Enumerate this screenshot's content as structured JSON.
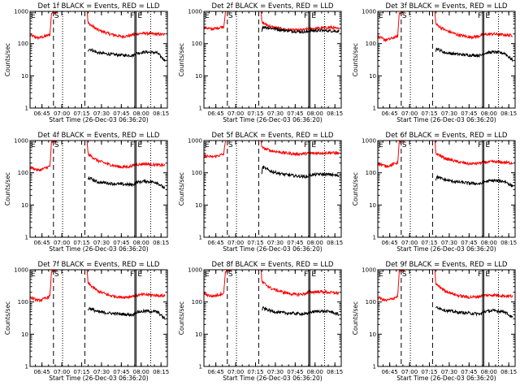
{
  "figure": {
    "title_template": "Det {n}f BLACK = Events, RED = LLD",
    "x_label": "Start Time (26-Dec-03 06:36:20)",
    "y_label": "Counts/sec",
    "x_ticks": [
      "06:45",
      "07:00",
      "07:15",
      "07:30",
      "07:45",
      "08:00",
      "08:15"
    ],
    "y_ticks": [
      "1",
      "10",
      "100",
      "1000"
    ],
    "markers": {
      "start": "E",
      "saa": "S",
      "flare": "F",
      "end": "E"
    },
    "colors": {
      "events": "#000000",
      "lld": "#ff0000",
      "axes": "#000000"
    }
  },
  "chart_data": [
    {
      "type": "line",
      "title": "Det 1f BLACK = Events, RED = LLD",
      "xlabel": "Start Time (26-Dec-03 06:36:20)",
      "ylabel": "Counts/sec",
      "xlim": [
        6.6,
        8.33
      ],
      "ylim": [
        1,
        1000
      ],
      "yscale": "log",
      "vlines": {
        "dashed": [
          6.895,
          7.29
        ],
        "dotted": [
          7.01,
          8.12
        ],
        "solid": [
          7.92,
          7.935
        ]
      },
      "series": [
        {
          "name": "RED = LLD",
          "color": "#ff0000",
          "x": [
            6.6,
            6.7,
            6.76,
            6.85,
            6.87,
            6.95,
            7.32,
            7.33,
            7.45,
            7.6,
            7.75,
            7.85,
            7.93,
            8.05,
            8.2,
            8.3
          ],
          "values": [
            180,
            150,
            160,
            190,
            900,
            1000,
            1000,
            430,
            270,
            200,
            165,
            175,
            200,
            210,
            195,
            190
          ]
        },
        {
          "name": "BLACK = Events",
          "color": "#000000",
          "x": [
            7.33,
            7.34,
            7.45,
            7.6,
            7.75,
            7.9,
            7.93,
            8.05,
            8.2,
            8.3
          ],
          "values": [
            60,
            70,
            52,
            47,
            44,
            43,
            50,
            55,
            52,
            30
          ]
        }
      ]
    },
    {
      "type": "line",
      "title": "Det 2f BLACK = Events, RED = LLD",
      "xlabel": "Start Time (26-Dec-03 06:36:20)",
      "ylabel": "Counts/sec",
      "xlim": [
        6.6,
        8.33
      ],
      "ylim": [
        1,
        1000
      ],
      "yscale": "log",
      "vlines": {
        "dashed": [
          6.895,
          7.29
        ],
        "dotted": [
          7.01,
          8.12
        ],
        "solid": [
          7.92,
          7.935
        ]
      },
      "series": [
        {
          "name": "RED = LLD",
          "color": "#ff0000",
          "x": [
            6.6,
            6.7,
            6.76,
            6.85,
            6.87,
            6.95,
            7.32,
            7.33,
            7.45,
            7.6,
            7.75,
            7.85,
            7.93,
            8.05,
            8.2,
            8.3
          ],
          "values": [
            320,
            280,
            300,
            340,
            1000,
            1000,
            1000,
            450,
            330,
            280,
            260,
            265,
            290,
            300,
            320,
            280
          ]
        },
        {
          "name": "BLACK = Events",
          "color": "#000000",
          "x": [
            7.33,
            7.34,
            7.45,
            7.6,
            7.75,
            7.9,
            7.93,
            8.05,
            8.2,
            8.3
          ],
          "values": [
            260,
            330,
            300,
            260,
            240,
            230,
            250,
            255,
            250,
            240
          ]
        }
      ]
    },
    {
      "type": "line",
      "title": "Det 3f BLACK = Events, RED = LLD",
      "xlabel": "Start Time (26-Dec-03 06:36:20)",
      "ylabel": "Counts/sec",
      "xlim": [
        6.6,
        8.33
      ],
      "ylim": [
        1,
        1000
      ],
      "yscale": "log",
      "vlines": {
        "dashed": [
          6.895,
          7.29
        ],
        "dotted": [
          7.01,
          8.12
        ],
        "solid": [
          7.92,
          7.935
        ]
      },
      "series": [
        {
          "name": "RED = LLD",
          "color": "#ff0000",
          "x": [
            6.6,
            6.7,
            6.76,
            6.85,
            6.87,
            6.95,
            7.32,
            7.33,
            7.45,
            7.6,
            7.75,
            7.85,
            7.93,
            8.05,
            8.2,
            8.3
          ],
          "values": [
            160,
            130,
            140,
            170,
            900,
            1000,
            1000,
            400,
            260,
            190,
            160,
            165,
            190,
            200,
            185,
            180
          ]
        },
        {
          "name": "BLACK = Events",
          "color": "#000000",
          "x": [
            7.33,
            7.34,
            7.45,
            7.6,
            7.75,
            7.9,
            7.93,
            8.05,
            8.2,
            8.3
          ],
          "values": [
            60,
            70,
            52,
            47,
            44,
            43,
            50,
            55,
            50,
            30
          ]
        }
      ]
    },
    {
      "type": "line",
      "title": "Det 4f BLACK = Events, RED = LLD",
      "xlabel": "Start Time (26-Dec-03 06:36:20)",
      "ylabel": "Counts/sec",
      "xlim": [
        6.6,
        8.33
      ],
      "ylim": [
        1,
        1000
      ],
      "yscale": "log",
      "vlines": {
        "dashed": [
          6.895,
          7.29
        ],
        "dotted": [
          7.01,
          8.12
        ],
        "solid": [
          7.92,
          7.935
        ]
      },
      "series": [
        {
          "name": "RED = LLD",
          "color": "#ff0000",
          "x": [
            6.6,
            6.7,
            6.76,
            6.85,
            6.87,
            6.95,
            7.32,
            7.33,
            7.45,
            7.6,
            7.75,
            7.85,
            7.93,
            8.05,
            8.2,
            8.3
          ],
          "values": [
            150,
            120,
            130,
            160,
            900,
            1000,
            1000,
            380,
            240,
            180,
            150,
            155,
            180,
            190,
            175,
            170
          ]
        },
        {
          "name": "BLACK = Events",
          "color": "#000000",
          "x": [
            7.33,
            7.34,
            7.45,
            7.6,
            7.75,
            7.9,
            7.93,
            8.05,
            8.2,
            8.3
          ],
          "values": [
            60,
            70,
            52,
            47,
            44,
            43,
            50,
            55,
            50,
            32
          ]
        }
      ]
    },
    {
      "type": "line",
      "title": "Det 5f BLACK = Events, RED = LLD",
      "xlabel": "Start Time (26-Dec-03 06:36:20)",
      "ylabel": "Counts/sec",
      "xlim": [
        6.6,
        8.33
      ],
      "ylim": [
        1,
        1000
      ],
      "yscale": "log",
      "vlines": {
        "dashed": [
          6.895,
          7.29
        ],
        "dotted": [
          7.01,
          8.12
        ],
        "solid": [
          7.92,
          7.935
        ]
      },
      "series": [
        {
          "name": "RED = LLD",
          "color": "#ff0000",
          "x": [
            6.6,
            6.7,
            6.76,
            6.85,
            6.87,
            6.95,
            7.32,
            7.33,
            7.45,
            7.6,
            7.75,
            7.85,
            7.93,
            8.05,
            8.2,
            8.3
          ],
          "values": [
            340,
            310,
            330,
            380,
            1000,
            1000,
            1000,
            600,
            480,
            420,
            380,
            390,
            400,
            410,
            420,
            400
          ]
        },
        {
          "name": "BLACK = Events",
          "color": "#000000",
          "x": [
            7.33,
            7.34,
            7.45,
            7.6,
            7.75,
            7.9,
            7.93,
            8.05,
            8.2,
            8.3
          ],
          "values": [
            100,
            150,
            110,
            90,
            80,
            75,
            85,
            90,
            88,
            80
          ]
        }
      ]
    },
    {
      "type": "line",
      "title": "Det 6f BLACK = Events, RED = LLD",
      "xlabel": "Start Time (26-Dec-03 06:36:20)",
      "ylabel": "Counts/sec",
      "xlim": [
        6.6,
        8.33
      ],
      "ylim": [
        1,
        1000
      ],
      "yscale": "log",
      "vlines": {
        "dashed": [
          6.895,
          7.29
        ],
        "dotted": [
          7.01,
          8.12
        ],
        "solid": [
          7.92,
          7.935
        ]
      },
      "series": [
        {
          "name": "RED = LLD",
          "color": "#ff0000",
          "x": [
            6.6,
            6.7,
            6.76,
            6.85,
            6.87,
            6.95,
            7.32,
            7.33,
            7.45,
            7.6,
            7.75,
            7.85,
            7.93,
            8.05,
            8.2,
            8.3
          ],
          "values": [
            200,
            160,
            170,
            210,
            900,
            1000,
            1000,
            400,
            280,
            220,
            190,
            195,
            210,
            220,
            210,
            200
          ]
        },
        {
          "name": "BLACK = Events",
          "color": "#000000",
          "x": [
            7.33,
            7.34,
            7.45,
            7.6,
            7.75,
            7.9,
            7.93,
            8.05,
            8.2,
            8.3
          ],
          "values": [
            60,
            75,
            60,
            52,
            48,
            45,
            52,
            58,
            54,
            38
          ]
        }
      ]
    },
    {
      "type": "line",
      "title": "Det 7f BLACK = Events, RED = LLD",
      "xlabel": "Start Time (26-Dec-03 06:36:20)",
      "ylabel": "Counts/sec",
      "xlim": [
        6.6,
        8.33
      ],
      "ylim": [
        1,
        1000
      ],
      "yscale": "log",
      "vlines": {
        "dashed": [
          6.895,
          7.29
        ],
        "dotted": [
          7.01,
          8.12
        ],
        "solid": [
          7.92,
          7.935
        ]
      },
      "series": [
        {
          "name": "RED = LLD",
          "color": "#ff0000",
          "x": [
            6.6,
            6.7,
            6.76,
            6.85,
            6.87,
            6.95,
            7.32,
            7.33,
            7.45,
            7.6,
            7.75,
            7.85,
            7.93,
            8.05,
            8.2,
            8.3
          ],
          "values": [
            140,
            110,
            120,
            150,
            900,
            1000,
            1000,
            380,
            220,
            160,
            140,
            145,
            160,
            170,
            160,
            155
          ]
        },
        {
          "name": "BLACK = Events",
          "color": "#000000",
          "x": [
            7.33,
            7.34,
            7.45,
            7.6,
            7.75,
            7.9,
            7.93,
            8.05,
            8.2,
            8.3
          ],
          "values": [
            55,
            65,
            50,
            45,
            42,
            40,
            48,
            52,
            50,
            30
          ]
        }
      ]
    },
    {
      "type": "line",
      "title": "Det 8f BLACK = Events, RED = LLD",
      "xlabel": "Start Time (26-Dec-03 06:36:20)",
      "ylabel": "Counts/sec",
      "xlim": [
        6.6,
        8.33
      ],
      "ylim": [
        1,
        1000
      ],
      "yscale": "log",
      "vlines": {
        "dashed": [
          6.895,
          7.29
        ],
        "dotted": [
          7.01,
          8.12
        ],
        "solid": [
          7.92,
          7.935
        ]
      },
      "series": [
        {
          "name": "RED = LLD",
          "color": "#ff0000",
          "x": [
            6.6,
            6.7,
            6.76,
            6.85,
            6.87,
            6.95,
            7.32,
            7.33,
            7.45,
            7.6,
            7.75,
            7.85,
            7.93,
            8.05,
            8.2,
            8.3
          ],
          "values": [
            180,
            150,
            160,
            190,
            900,
            1000,
            1000,
            420,
            260,
            200,
            170,
            175,
            200,
            210,
            195,
            190
          ]
        },
        {
          "name": "BLACK = Events",
          "color": "#000000",
          "x": [
            7.33,
            7.34,
            7.45,
            7.6,
            7.75,
            7.9,
            7.93,
            8.05,
            8.2,
            8.3
          ],
          "values": [
            55,
            65,
            52,
            46,
            44,
            42,
            48,
            52,
            50,
            40
          ]
        }
      ]
    },
    {
      "type": "line",
      "title": "Det 9f BLACK = Events, RED = LLD",
      "xlabel": "Start Time (26-Dec-03 06:36:20)",
      "ylabel": "Counts/sec",
      "xlim": [
        6.6,
        8.33
      ],
      "ylim": [
        1,
        1000
      ],
      "yscale": "log",
      "vlines": {
        "dashed": [
          6.895,
          7.29
        ],
        "dotted": [
          7.01,
          8.12
        ],
        "solid": [
          7.92,
          7.935
        ]
      },
      "series": [
        {
          "name": "RED = LLD",
          "color": "#ff0000",
          "x": [
            6.6,
            6.7,
            6.76,
            6.85,
            6.87,
            6.95,
            7.32,
            7.33,
            7.45,
            7.6,
            7.75,
            7.85,
            7.93,
            8.05,
            8.2,
            8.3
          ],
          "values": [
            140,
            110,
            120,
            150,
            900,
            1000,
            1000,
            360,
            220,
            160,
            140,
            145,
            160,
            165,
            155,
            150
          ]
        },
        {
          "name": "BLACK = Events",
          "color": "#000000",
          "x": [
            7.33,
            7.34,
            7.45,
            7.6,
            7.75,
            7.9,
            7.93,
            8.05,
            8.2,
            8.3
          ],
          "values": [
            60,
            70,
            55,
            48,
            45,
            42,
            50,
            54,
            50,
            32
          ]
        }
      ]
    }
  ]
}
